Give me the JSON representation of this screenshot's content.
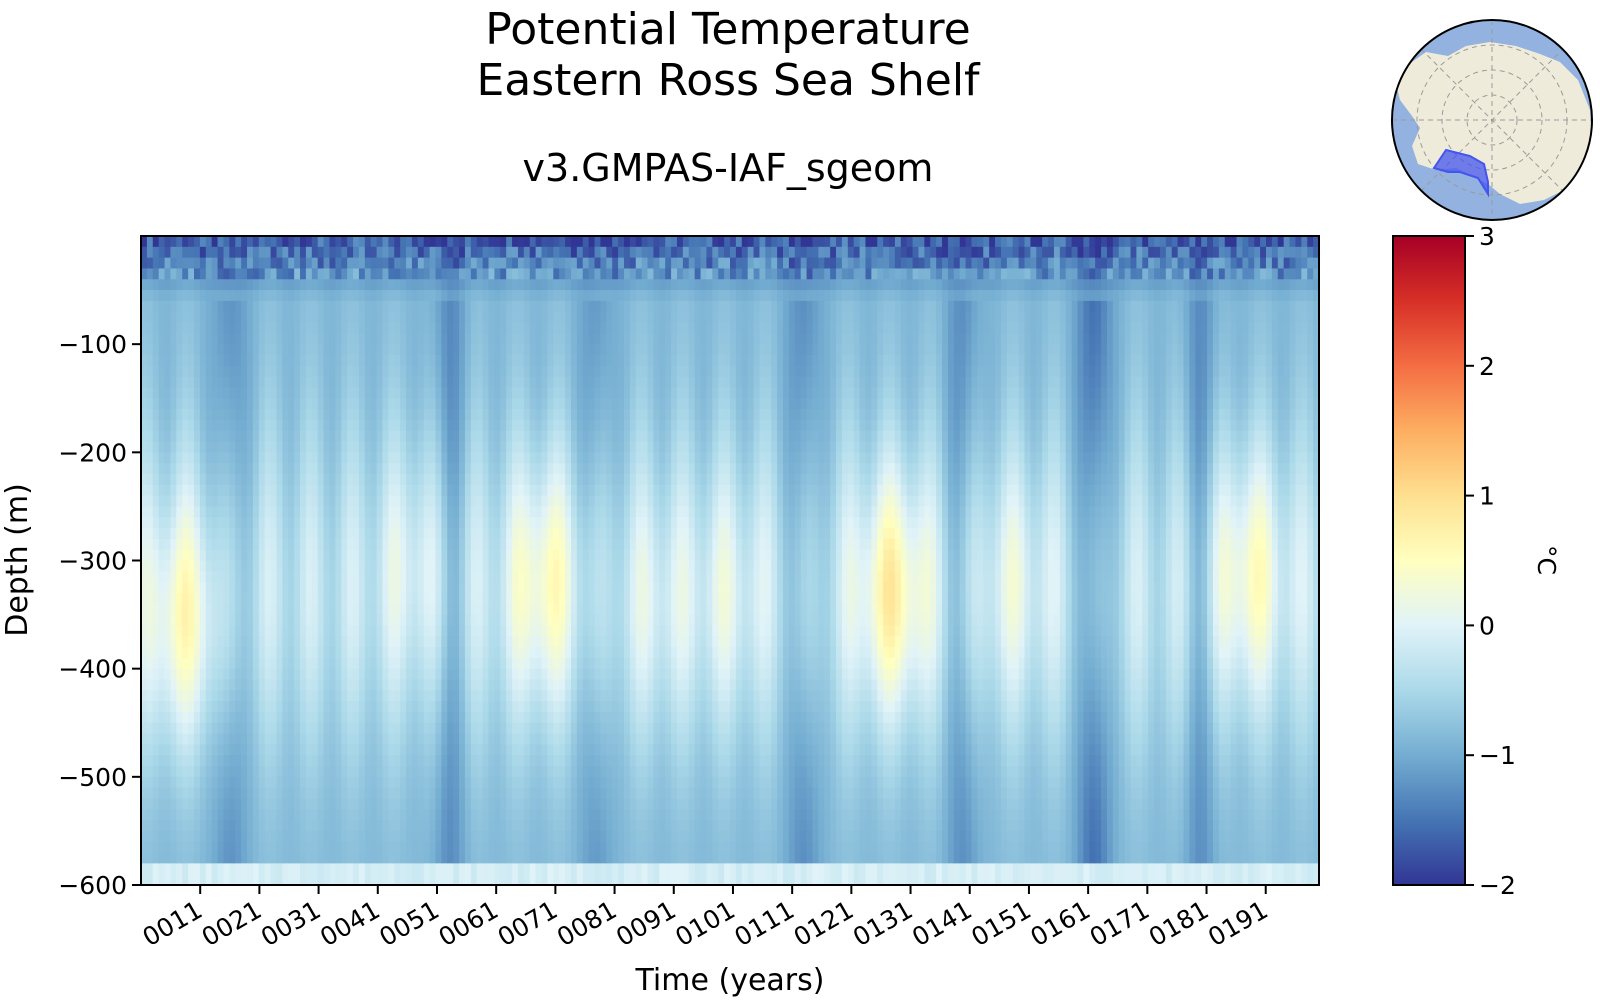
{
  "chart_data": {
    "type": "heatmap",
    "title": [
      "Potential Temperature",
      "Eastern Ross Sea Shelf"
    ],
    "subtitle": "v3.GMPAS-IAF_sgeom",
    "xlabel": "Time (years)",
    "ylabel": "Depth (m)",
    "x_range": [
      1,
      200
    ],
    "xticks": [
      11,
      21,
      31,
      41,
      51,
      61,
      71,
      81,
      91,
      101,
      111,
      121,
      131,
      141,
      151,
      161,
      171,
      181,
      191
    ],
    "xtick_labels": [
      "0011",
      "0021",
      "0031",
      "0041",
      "0051",
      "0061",
      "0071",
      "0081",
      "0091",
      "0101",
      "0111",
      "0121",
      "0131",
      "0141",
      "0151",
      "0161",
      "0171",
      "0181",
      "0191"
    ],
    "y_range": [
      -600,
      0
    ],
    "yticks": [
      -100,
      -200,
      -300,
      -400,
      -500,
      -600
    ],
    "ytick_labels": [
      "−100",
      "−200",
      "−300",
      "−400",
      "−500",
      "−600"
    ],
    "colormap": "RdYlBu_r",
    "colorbar": {
      "label": "°C",
      "range": [
        -2,
        3
      ],
      "ticks": [
        -2,
        -1,
        0,
        1,
        2,
        3
      ],
      "tick_labels": [
        "−2",
        "−1",
        "0",
        "1",
        "2",
        "3"
      ]
    },
    "warm_events": [
      {
        "year": 8,
        "depth": -360,
        "amplitude": 0.8
      },
      {
        "year": 47,
        "depth": -300,
        "amplitude": 0.35
      },
      {
        "year": 69,
        "depth": -320,
        "amplitude": 0.8
      },
      {
        "year": 88,
        "depth": -340,
        "amplitude": 0.3
      },
      {
        "year": 100,
        "depth": -330,
        "amplitude": 0.35
      },
      {
        "year": 128,
        "depth": -330,
        "amplitude": 1.0
      },
      {
        "year": 148,
        "depth": -320,
        "amplitude": 0.4
      },
      {
        "year": 188,
        "depth": -310,
        "amplitude": 0.75
      }
    ],
    "cold_events": [
      {
        "year": 16,
        "strength": 0.6
      },
      {
        "year": 53,
        "strength": 0.6
      },
      {
        "year": 78,
        "strength": 0.5
      },
      {
        "year": 113,
        "strength": 0.65
      },
      {
        "year": 140,
        "strength": 0.6
      },
      {
        "year": 162,
        "strength": 1.0
      },
      {
        "year": 180,
        "strength": 0.55
      }
    ]
  },
  "inset_map": {
    "type": "south-polar-stereographic",
    "region": "Eastern Ross Sea Shelf",
    "colors": {
      "ocean": "#93b2e0",
      "land": "#efebdb",
      "region": "#4455ee",
      "grid": "#9a9a9a"
    }
  }
}
